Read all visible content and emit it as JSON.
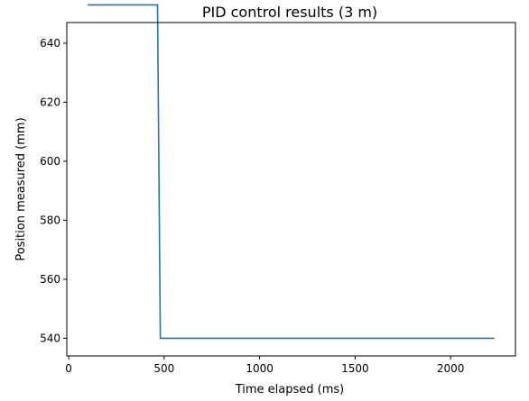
{
  "chart_data": {
    "type": "line",
    "title": "PID control results (3 m)",
    "xlabel": "Time elapsed (ms)",
    "ylabel": "Position measured (mm)",
    "xlim": [
      -10,
      2340
    ],
    "ylim": [
      534,
      647
    ],
    "xticks": [
      0,
      500,
      1000,
      1500,
      2000
    ],
    "yticks": [
      540,
      560,
      580,
      600,
      620,
      640
    ],
    "grid": false,
    "series": [
      {
        "color": "#1f77b4",
        "x": [
          100,
          465,
          480,
          2230
        ],
        "y": [
          653,
          653,
          540,
          540
        ]
      }
    ]
  }
}
